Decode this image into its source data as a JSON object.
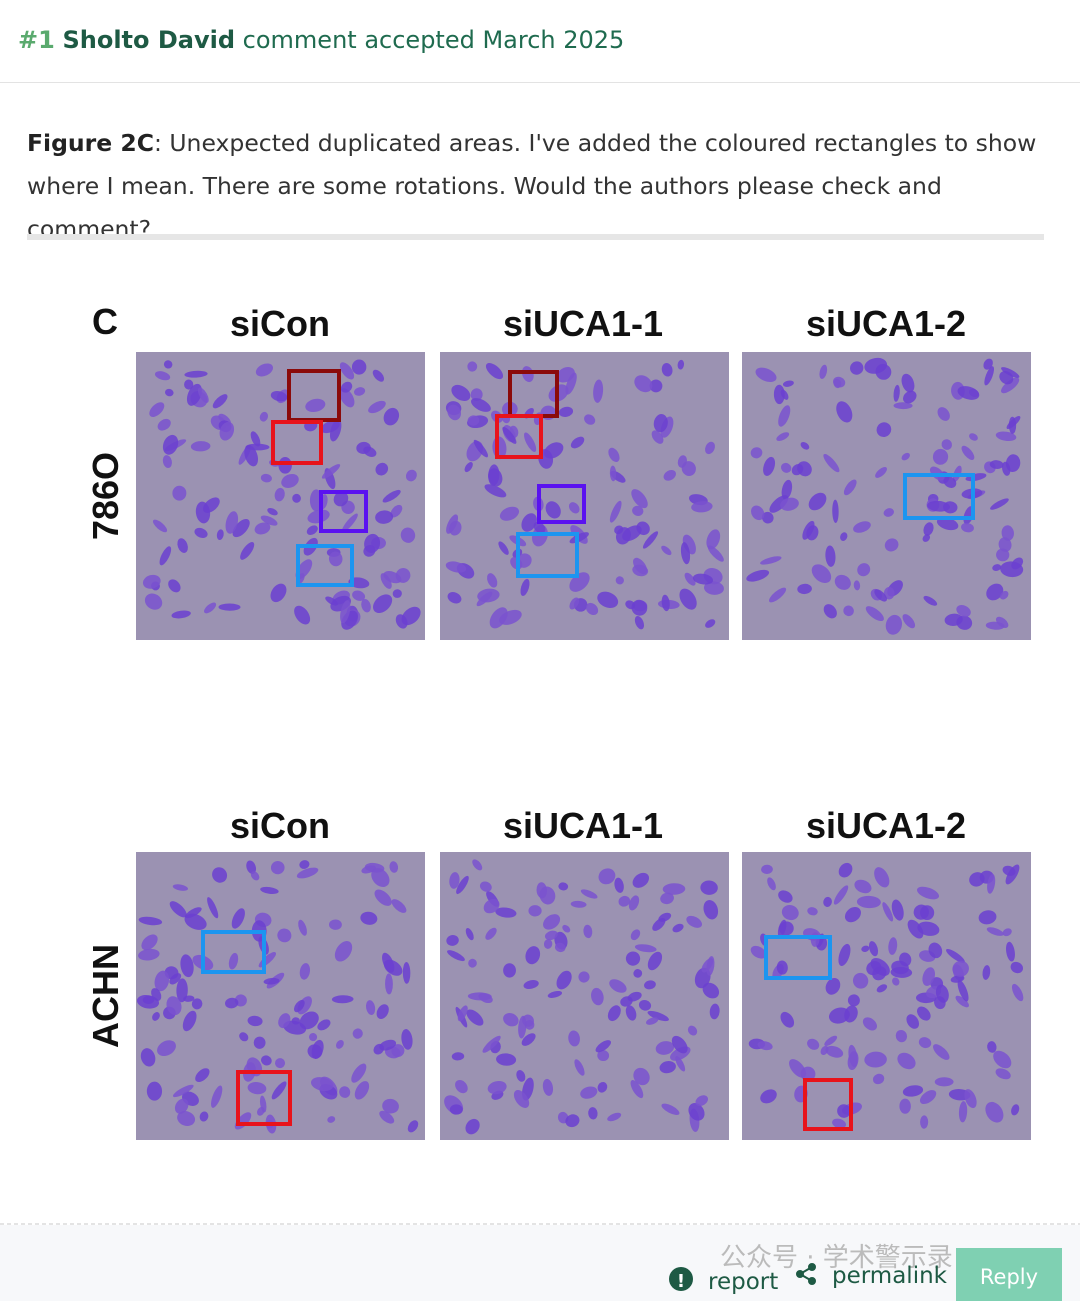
{
  "header": {
    "number": "#1",
    "author": "Sholto David",
    "status": "comment accepted March 2025"
  },
  "comment": {
    "figure_ref": "Figure 2C",
    "text": ": Unexpected duplicated areas. I've added the coloured rectangles to show where I mean. There are some rotations. Would the authors please check and comment?"
  },
  "figure": {
    "panel_label": "C",
    "rows": [
      {
        "label": "786O",
        "columns": [
          "siCon",
          "siUCA1-1",
          "siUCA1-2"
        ]
      },
      {
        "label": "ACHN",
        "columns": [
          "siCon",
          "siUCA1-1",
          "siUCA1-2"
        ]
      }
    ]
  },
  "footer": {
    "report": "report",
    "permalink": "permalink",
    "reply": "Reply",
    "watermark": "公众号 · 学术警示录"
  }
}
